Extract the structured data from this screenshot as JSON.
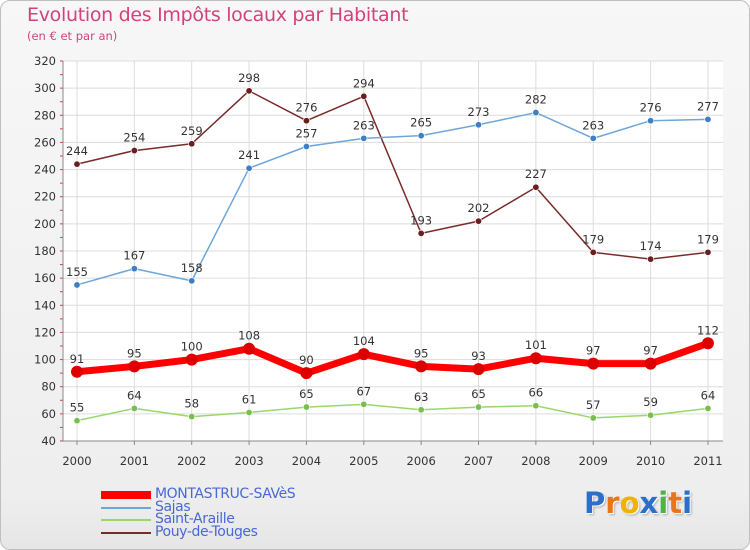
{
  "header": {
    "title": "Evolution des Impôts locaux par Habitant",
    "subtitle": "(en € et par an)"
  },
  "logo": {
    "letters": [
      "P",
      "r",
      "o",
      "x",
      "i",
      "t",
      "i"
    ],
    "colors": [
      "#2a6fc9",
      "#e8751a",
      "#f0b400",
      "#2a6fc9",
      "#4bb543",
      "#e8751a",
      "#2a6fc9"
    ]
  },
  "chart_data": {
    "type": "line",
    "title": "Evolution des Impôts locaux par Habitant",
    "subtitle": "(en € et par an)",
    "xlabel": "",
    "ylabel": "",
    "x": [
      "2000",
      "2001",
      "2002",
      "2003",
      "2004",
      "2005",
      "2006",
      "2007",
      "2008",
      "2009",
      "2010",
      "2011"
    ],
    "ylim": [
      40,
      320
    ],
    "yticks": [
      40,
      60,
      80,
      100,
      120,
      140,
      160,
      180,
      200,
      220,
      240,
      260,
      280,
      300,
      320
    ],
    "grid": true,
    "legend": "bottom-left",
    "series": [
      {
        "name": "MONTASTRUC-SAVèS",
        "color": "#ff0000",
        "marker": "#dd0000",
        "width": 7,
        "values": [
          91,
          95,
          100,
          108,
          90,
          104,
          95,
          93,
          101,
          97,
          97,
          112
        ]
      },
      {
        "name": "Sajas",
        "color": "#6ea6d7",
        "marker": "#3d7fc4",
        "width": 1.5,
        "values": [
          155,
          167,
          158,
          241,
          257,
          263,
          265,
          273,
          282,
          263,
          276,
          277
        ]
      },
      {
        "name": "Saint-Araille",
        "color": "#9ad66a",
        "marker": "#78c04b",
        "width": 1.5,
        "values": [
          55,
          64,
          58,
          61,
          65,
          67,
          63,
          65,
          66,
          57,
          59,
          64
        ]
      },
      {
        "name": "Pouy-de-Touges",
        "color": "#7a2a2a",
        "marker": "#6a1e1e",
        "width": 1.5,
        "values": [
          244,
          254,
          259,
          298,
          276,
          294,
          193,
          202,
          227,
          179,
          174,
          179
        ]
      }
    ]
  }
}
